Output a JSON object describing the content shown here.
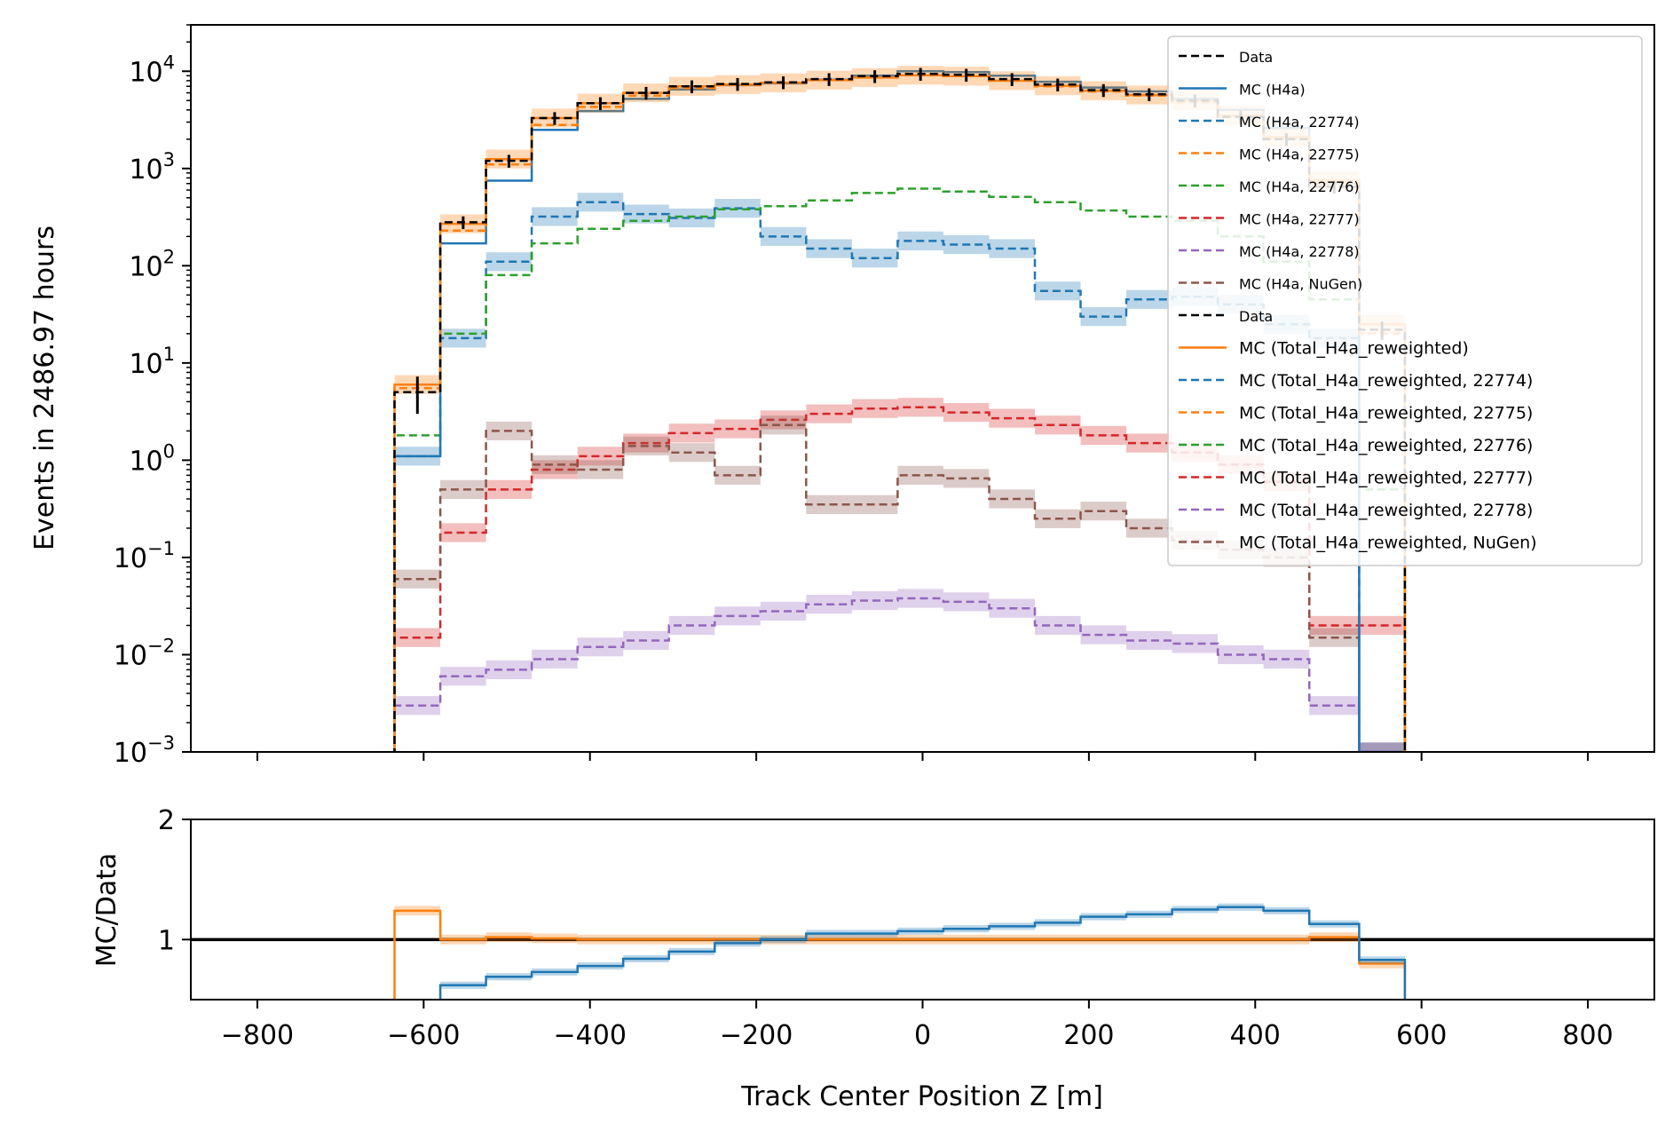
{
  "chart_data": [
    {
      "type": "line",
      "panel": "main",
      "drawstyle": "steps",
      "ylabel": "Events in 2486.97 hours",
      "yscale": "log",
      "ylim": [
        0.001,
        30000
      ],
      "xlim": [
        -880,
        880
      ],
      "y_tick_labels": [
        {
          "value": 0.001,
          "base": "10",
          "exp": "−3"
        },
        {
          "value": 0.01,
          "base": "10",
          "exp": "−2"
        },
        {
          "value": 0.1,
          "base": "10",
          "exp": "−1"
        },
        {
          "value": 1,
          "base": "10",
          "exp": "0"
        },
        {
          "value": 10,
          "base": "10",
          "exp": "1"
        },
        {
          "value": 100,
          "base": "10",
          "exp": "2"
        },
        {
          "value": 1000,
          "base": "10",
          "exp": "3"
        },
        {
          "value": 10000,
          "base": "10",
          "exp": "4"
        }
      ],
      "bin_edges": [
        -635,
        -580,
        -525,
        -470,
        -415,
        -360,
        -305,
        -250,
        -195,
        -140,
        -85,
        -30,
        25,
        80,
        135,
        190,
        245,
        300,
        355,
        410,
        465,
        525,
        580
      ],
      "legend": {
        "placement": "top-right",
        "entries": [
          {
            "label": "Data",
            "color": "#000000",
            "style": "dashed",
            "size": "small"
          },
          {
            "label": "MC (H4a)",
            "color": "#1f77b4",
            "style": "solid",
            "size": "small"
          },
          {
            "label": "MC (H4a, 22774)",
            "color": "#1f77b4",
            "style": "dashed",
            "size": "small"
          },
          {
            "label": "MC (H4a, 22775)",
            "color": "#ff7f0e",
            "style": "dashed",
            "size": "small"
          },
          {
            "label": "MC (H4a, 22776)",
            "color": "#2ca02c",
            "style": "dashed",
            "size": "small"
          },
          {
            "label": "MC (H4a, 22777)",
            "color": "#d62728",
            "style": "dashed",
            "size": "small"
          },
          {
            "label": "MC (H4a, 22778)",
            "color": "#9467bd",
            "style": "dashed",
            "size": "small"
          },
          {
            "label": "MC (H4a, NuGen)",
            "color": "#8c564b",
            "style": "dashed",
            "size": "small"
          },
          {
            "label": "Data",
            "color": "#000000",
            "style": "dashed",
            "size": "small"
          },
          {
            "label": "MC (Total_H4a_reweighted)",
            "color": "#ff7f0e",
            "style": "solid",
            "size": "large"
          },
          {
            "label": "MC (Total_H4a_reweighted, 22774)",
            "color": "#1f77b4",
            "style": "dashed",
            "size": "large"
          },
          {
            "label": "MC (Total_H4a_reweighted, 22775)",
            "color": "#ff7f0e",
            "style": "dashed",
            "size": "large"
          },
          {
            "label": "MC (Total_H4a_reweighted, 22776)",
            "color": "#2ca02c",
            "style": "dashed",
            "size": "large"
          },
          {
            "label": "MC (Total_H4a_reweighted, 22777)",
            "color": "#d62728",
            "style": "dashed",
            "size": "large"
          },
          {
            "label": "MC (Total_H4a_reweighted, 22778)",
            "color": "#9467bd",
            "style": "dashed",
            "size": "large"
          },
          {
            "label": "MC (Total_H4a_reweighted, NuGen)",
            "color": "#8c564b",
            "style": "dashed",
            "size": "large"
          }
        ]
      },
      "series": [
        {
          "name": "MC (H4a, 22774)",
          "color": "#1f77b4",
          "style": "dashed",
          "band": true,
          "values": [
            1.1,
            18,
            110,
            320,
            450,
            340,
            310,
            390,
            200,
            150,
            120,
            180,
            165,
            150,
            55,
            30,
            45,
            48,
            40,
            25,
            18,
            0.001
          ]
        },
        {
          "name": "MC (H4a, 22776)",
          "color": "#2ca02c",
          "style": "dashed",
          "band": false,
          "values": [
            1.8,
            20,
            80,
            170,
            240,
            290,
            320,
            380,
            410,
            470,
            560,
            620,
            580,
            510,
            450,
            370,
            320,
            290,
            200,
            110,
            45,
            0.5
          ]
        },
        {
          "name": "MC (H4a, 22777)",
          "color": "#d62728",
          "style": "dashed",
          "band": true,
          "values": [
            0.015,
            0.18,
            0.5,
            0.8,
            1.1,
            1.5,
            1.9,
            2.1,
            2.6,
            3.0,
            3.4,
            3.5,
            3.1,
            2.7,
            2.3,
            1.8,
            1.5,
            1.2,
            0.9,
            0.6,
            0.02,
            0.02
          ]
        },
        {
          "name": "MC (H4a, NuGen)",
          "color": "#8c564b",
          "style": "dashed",
          "band": true,
          "values": [
            0.06,
            0.5,
            2.0,
            0.9,
            0.8,
            1.4,
            1.2,
            0.7,
            2.3,
            0.35,
            0.35,
            0.7,
            0.65,
            0.4,
            0.25,
            0.3,
            0.2,
            0.15,
            0.12,
            0.1,
            0.015,
            0.001
          ]
        },
        {
          "name": "MC (H4a, 22778)",
          "color": "#9467bd",
          "style": "dashed",
          "band": true,
          "values": [
            0.003,
            0.006,
            0.007,
            0.009,
            0.012,
            0.014,
            0.02,
            0.025,
            0.028,
            0.033,
            0.036,
            0.038,
            0.035,
            0.03,
            0.02,
            0.016,
            0.014,
            0.013,
            0.01,
            0.009,
            0.003,
            0.001
          ]
        },
        {
          "name": "MC (H4a)",
          "color": "#1f77b4",
          "style": "solid",
          "band": false,
          "values": [
            1.1,
            170,
            750,
            2500,
            3900,
            5200,
            6500,
            7200,
            7500,
            8200,
            9000,
            10000,
            9800,
            9000,
            7800,
            6800,
            6200,
            5200,
            4000,
            2600,
            700,
            0.001
          ]
        },
        {
          "name": "MC (H4a, 22775)",
          "color": "#ff7f0e",
          "style": "dashed",
          "band": false,
          "values": [
            5.5,
            230,
            1100,
            2800,
            4300,
            5600,
            6700,
            7200,
            7600,
            8200,
            8800,
            9200,
            8900,
            8000,
            7000,
            6200,
            5600,
            4800,
            3400,
            2000,
            700,
            20
          ]
        },
        {
          "name": "MC (Total_H4a_reweighted)",
          "color": "#ff7f0e",
          "style": "solid",
          "band": true,
          "values": [
            6.0,
            270,
            1250,
            3300,
            4700,
            6000,
            7000,
            7300,
            7600,
            8100,
            8600,
            9100,
            8900,
            8000,
            7100,
            6300,
            5700,
            5000,
            3500,
            2100,
            750,
            25
          ]
        },
        {
          "name": "Data",
          "color": "#000000",
          "style": "dashed",
          "band": false,
          "values": [
            5.0,
            280,
            1200,
            3300,
            4700,
            6000,
            7000,
            7400,
            7700,
            8300,
            8900,
            9400,
            9200,
            8300,
            7300,
            6400,
            5800,
            5000,
            3400,
            2000,
            650,
            22
          ]
        }
      ]
    },
    {
      "type": "line",
      "panel": "ratio",
      "drawstyle": "steps",
      "ylabel": "MC/Data",
      "xlabel": "Track Center Position Z [m]",
      "ylim": [
        0.5,
        2
      ],
      "xlim": [
        -880,
        880
      ],
      "y_ticks": [
        1,
        2
      ],
      "x_ticks": [
        -800,
        -600,
        -400,
        -200,
        0,
        200,
        400,
        600,
        800
      ],
      "x_tick_labels": [
        "−800",
        "−600",
        "−400",
        "−200",
        "0",
        "200",
        "400",
        "600",
        "800"
      ],
      "reference_line": 1,
      "bin_edges": [
        -635,
        -580,
        -525,
        -470,
        -415,
        -360,
        -305,
        -250,
        -195,
        -140,
        -85,
        -30,
        25,
        80,
        135,
        190,
        245,
        300,
        355,
        410,
        465,
        525,
        580
      ],
      "series": [
        {
          "name": "MC (Total_H4a_reweighted)",
          "color": "#ff7f0e",
          "values": [
            1.24,
            1.0,
            1.02,
            1.01,
            1.0,
            1.0,
            1.0,
            1.0,
            1.0,
            1.0,
            1.0,
            1.0,
            1.0,
            1.0,
            1.0,
            1.0,
            1.0,
            1.0,
            1.0,
            1.0,
            1.02,
            0.8
          ]
        },
        {
          "name": "MC (H4a)",
          "color": "#1f77b4",
          "values": [
            null,
            0.62,
            0.69,
            0.73,
            0.78,
            0.84,
            0.9,
            0.97,
            1.0,
            1.05,
            1.05,
            1.07,
            1.09,
            1.11,
            1.14,
            1.19,
            1.21,
            1.25,
            1.27,
            1.24,
            1.13,
            0.83
          ]
        }
      ]
    }
  ]
}
